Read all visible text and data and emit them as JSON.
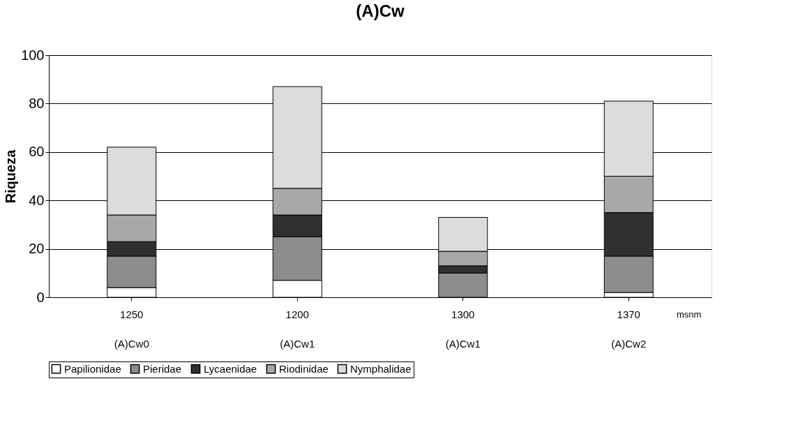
{
  "chart_data": {
    "type": "bar",
    "title": "(A)Cw",
    "ylabel": "Riqueza",
    "stacked": true,
    "categories": [
      "1250\n(A)Cw0",
      "1200\n(A)Cw1",
      "1300\n(A)Cw1",
      "1370\n(A)Cw2"
    ],
    "series": [
      {
        "name": "Papilionidae",
        "color": "#ffffff",
        "values": [
          4,
          7,
          0,
          2
        ]
      },
      {
        "name": "Pieridae",
        "color": "#8c8c8c",
        "values": [
          13,
          18,
          10,
          15
        ]
      },
      {
        "name": "Lycaenidae",
        "color": "#303030",
        "values": [
          6,
          9,
          3,
          18
        ]
      },
      {
        "name": "Riodinidae",
        "color": "#a8a8a8",
        "values": [
          11,
          11,
          6,
          15
        ]
      },
      {
        "name": "Nymphalidae",
        "color": "#dcdcdc",
        "values": [
          28,
          42,
          14,
          31
        ]
      }
    ],
    "ylim": [
      0,
      100
    ],
    "yticks": [
      0,
      20,
      40,
      60,
      80,
      100
    ],
    "grid": "y",
    "legend": "bottom",
    "annotations": [
      "msnm"
    ]
  }
}
